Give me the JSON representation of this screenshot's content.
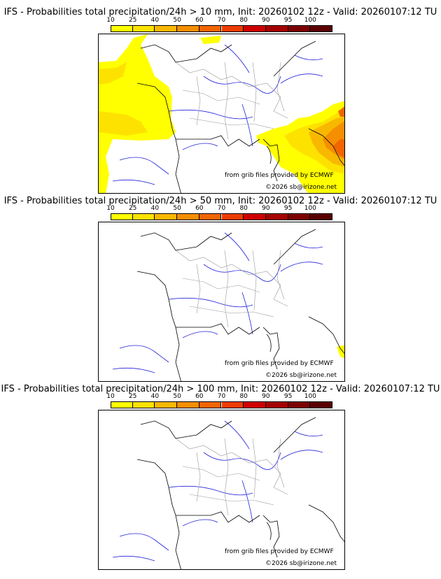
{
  "colors": {
    "bins": [
      "#ffff00",
      "#fde200",
      "#f9b800",
      "#f58e00",
      "#f26500",
      "#ee3c00",
      "#d00000",
      "#a60000",
      "#7d0000",
      "#5a0000"
    ],
    "lakes": "#2222dd",
    "borders": "#999999",
    "coast": "#000000"
  },
  "colorbar": {
    "ticks": [
      "10",
      "25",
      "40",
      "50",
      "60",
      "70",
      "80",
      "90",
      "95",
      "100"
    ]
  },
  "credit": {
    "source": "from grib files provided by ECMWF",
    "copyright": "©2026 sb@irizone.net"
  },
  "panels": [
    {
      "title": "IFS - Probabilities total precipitation/24h > 10 mm, Init: 20260102 12z - Valid: 20260107:12 TU",
      "threshold_mm": 10
    },
    {
      "title": "IFS - Probabilities total precipitation/24h > 50 mm, Init: 20260102 12z - Valid: 20260107:12 TU",
      "threshold_mm": 50
    },
    {
      "title": "IFS - Probabilities total precipitation/24h > 100 mm, Init: 20260102 12z - Valid: 20260107:12 TU",
      "threshold_mm": 100
    }
  ]
}
